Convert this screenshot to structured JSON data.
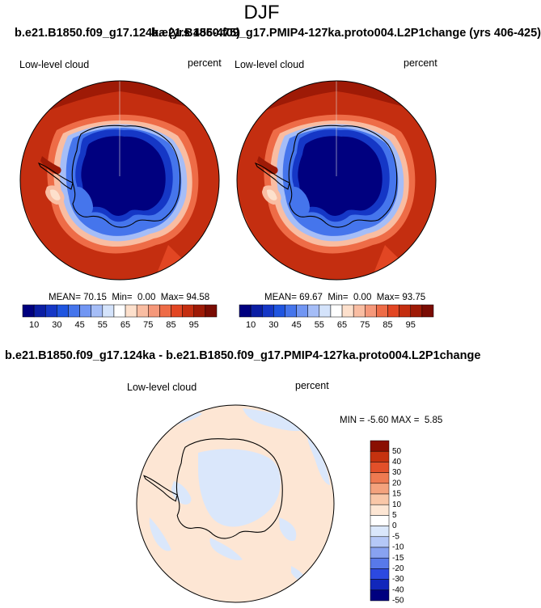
{
  "header": {
    "season": "DJF"
  },
  "panels": {
    "left": {
      "title": "b.e21.B1850.f09_g17.124ka (yrs 456-475)",
      "variable": "Low-level cloud",
      "units": "percent",
      "mean": "70.15",
      "min": "0.00",
      "max": "94.58"
    },
    "right": {
      "title": "b.e21.B1850.f09_g17.PMIP4-127ka.proto004.L2P1change (yrs 406-425)",
      "variable": "Low-level cloud",
      "units": "percent",
      "mean": "69.67",
      "min": "0.00",
      "max": "93.75"
    },
    "diff": {
      "title": "b.e21.B1850.f09_g17.124ka - b.e21.B1850.f09_g17.PMIP4-127ka.proto004.L2P1change",
      "variable": "Low-level cloud",
      "units": "percent",
      "min": "-5.60",
      "max": "5.85"
    }
  },
  "labels": {
    "mean": "MEAN=",
    "min": "Min=",
    "max": "Max=",
    "min_cap": "MIN =",
    "max_cap": "MAX ="
  },
  "colorbar_abs": {
    "colors": [
      "#00007f",
      "#0b1ea4",
      "#1537c6",
      "#1f55e0",
      "#4575ec",
      "#7196f3",
      "#a5bdf7",
      "#d4e3fb",
      "#ffffff",
      "#fde0cc",
      "#f9bda2",
      "#f5987a",
      "#ee6c47",
      "#e24623",
      "#c42e10",
      "#9e1a06",
      "#7a0c03"
    ],
    "ticks": [
      "10",
      "30",
      "45",
      "55",
      "65",
      "75",
      "85",
      "95"
    ]
  },
  "colorbar_diff": {
    "colors": [
      "#00007f",
      "#1127bb",
      "#2c49e0",
      "#5879ea",
      "#88a2f1",
      "#b5c8f7",
      "#dae7fb",
      "#ffffff",
      "#fde6d4",
      "#f9c7a8",
      "#f4a27d",
      "#ee7a51",
      "#e2502a",
      "#c5320f",
      "#8a0f02"
    ],
    "ticks": [
      "50",
      "40",
      "30",
      "20",
      "15",
      "10",
      "5",
      "0",
      "-5",
      "-10",
      "-15",
      "-20",
      "-30",
      "-40",
      "-50"
    ]
  },
  "icons": {
    "maps": "antarctica-polar-stereographic"
  }
}
